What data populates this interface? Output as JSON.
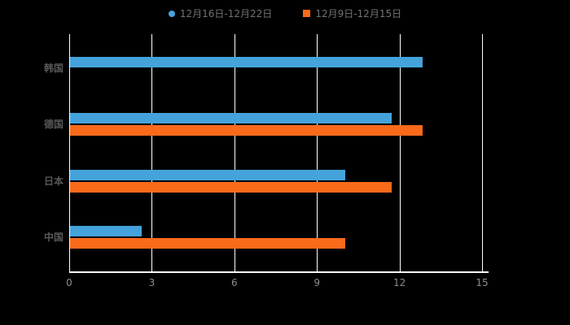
{
  "legend": {
    "items": [
      {
        "label": "12月16日-12月22日",
        "color": "#45A3DB",
        "marker": "circle"
      },
      {
        "label": "12月9日-12月15日",
        "color": "#FA6A1B",
        "marker": "square"
      }
    ]
  },
  "chart_data": {
    "type": "bar",
    "orientation": "horizontal",
    "title": "",
    "xlabel": "",
    "ylabel": "",
    "categories": [
      "韩国",
      "德国",
      "日本",
      "中国"
    ],
    "series": [
      {
        "name": "12月16日-12月22日",
        "color": "#45A3DB",
        "values": [
          12.8,
          11.7,
          10,
          2.6
        ]
      },
      {
        "name": "12月9日-12月15日",
        "color": "#FA6A1B",
        "values": [
          0,
          12.8,
          11.7,
          10
        ]
      }
    ],
    "xlim": [
      0,
      15
    ],
    "xticks": [
      0,
      3,
      6,
      9,
      12,
      15
    ],
    "grid": true,
    "legend_position": "top",
    "background": "#000000",
    "gridline_color": "#ffffff"
  }
}
